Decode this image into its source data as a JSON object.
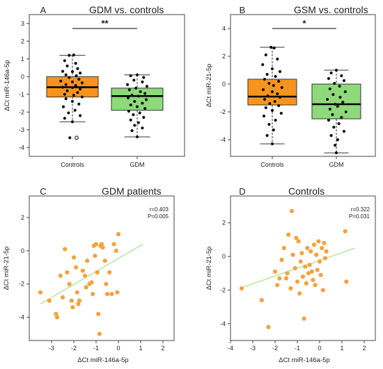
{
  "figure": {
    "background": "#ffffff",
    "colors": {
      "controls_box": "#f7941d",
      "gdm_box": "#8ed97a",
      "points": "#111111",
      "scatter_points": "#f5a23a",
      "regression_line": "#b5e39a",
      "frame": "#444444"
    }
  },
  "chart_data": [
    {
      "id": "A",
      "type": "box",
      "panel_letter": "A",
      "title": "GDM vs. controls",
      "xlabel": "",
      "ylabel": "ΔCt miR-146a-5p",
      "ylim": [
        -4.5,
        3.5
      ],
      "yticks": [
        -4,
        -3,
        -2,
        -1,
        0,
        1,
        2,
        3
      ],
      "categories": [
        "Controls",
        "GDM"
      ],
      "significance": "**",
      "boxes": [
        {
          "category": "Controls",
          "min": -2.55,
          "q1": -1.15,
          "median": -0.6,
          "q3": 0.0,
          "max": 1.2,
          "outliers": [
            -3.45
          ]
        },
        {
          "category": "GDM",
          "min": -3.4,
          "q1": -1.9,
          "median": -1.1,
          "q3": -0.65,
          "max": 0.1,
          "outliers": []
        }
      ],
      "points": [
        [
          0.95,
          1.2
        ],
        [
          1.02,
          1.22
        ],
        [
          0.88,
          0.9
        ],
        [
          1.05,
          0.75
        ],
        [
          0.92,
          0.6
        ],
        [
          1.08,
          0.45
        ],
        [
          0.85,
          0.3
        ],
        [
          1.0,
          0.28
        ],
        [
          1.12,
          0.2
        ],
        [
          0.9,
          0.1
        ],
        [
          1.06,
          0.05
        ],
        [
          0.95,
          -0.05
        ],
        [
          1.1,
          -0.15
        ],
        [
          0.82,
          -0.25
        ],
        [
          1.0,
          -0.3
        ],
        [
          1.15,
          -0.35
        ],
        [
          0.9,
          -0.45
        ],
        [
          1.05,
          -0.5
        ],
        [
          0.85,
          -0.6
        ],
        [
          1.0,
          -0.62
        ],
        [
          1.12,
          -0.7
        ],
        [
          0.92,
          -0.8
        ],
        [
          1.08,
          -0.9
        ],
        [
          0.88,
          -1.0
        ],
        [
          1.02,
          -1.05
        ],
        [
          1.15,
          -1.15
        ],
        [
          0.9,
          -1.25
        ],
        [
          1.0,
          -1.4
        ],
        [
          1.1,
          -1.55
        ],
        [
          0.86,
          -1.7
        ],
        [
          1.04,
          -1.9
        ],
        [
          0.94,
          -2.05
        ],
        [
          1.12,
          -2.2
        ],
        [
          0.88,
          -2.35
        ],
        [
          1.0,
          -2.55
        ],
        [
          0.96,
          -3.45
        ],
        [
          2.0,
          0.1
        ],
        [
          1.9,
          0.05
        ],
        [
          2.1,
          -0.05
        ],
        [
          1.95,
          -0.2
        ],
        [
          2.08,
          -0.3
        ],
        [
          1.85,
          -0.45
        ],
        [
          2.15,
          -0.55
        ],
        [
          1.98,
          -0.65
        ],
        [
          1.88,
          -0.75
        ],
        [
          2.05,
          -0.85
        ],
        [
          2.12,
          -0.95
        ],
        [
          1.92,
          -1.05
        ],
        [
          2.02,
          -1.1
        ],
        [
          1.86,
          -1.2
        ],
        [
          2.14,
          -1.3
        ],
        [
          1.96,
          -1.4
        ],
        [
          2.08,
          -1.5
        ],
        [
          1.9,
          -1.6
        ],
        [
          2.0,
          -1.7
        ],
        [
          2.12,
          -1.8
        ],
        [
          1.87,
          -1.95
        ],
        [
          2.04,
          -2.05
        ],
        [
          1.94,
          -2.15
        ],
        [
          2.1,
          -2.3
        ],
        [
          1.9,
          -2.45
        ],
        [
          2.02,
          -2.6
        ],
        [
          1.96,
          -2.75
        ],
        [
          2.08,
          -2.9
        ],
        [
          1.92,
          -3.05
        ],
        [
          2.0,
          -3.4
        ]
      ]
    },
    {
      "id": "B",
      "type": "box",
      "panel_letter": "B",
      "title": "GSM vs. controls",
      "xlabel": "",
      "ylabel": "ΔCt miR-21-5p",
      "ylim": [
        -5.2,
        5.0
      ],
      "yticks": [
        -4,
        -2,
        0,
        2,
        4
      ],
      "categories": [
        "Controls",
        "GDM"
      ],
      "significance": "*",
      "boxes": [
        {
          "category": "Controls",
          "min": -4.3,
          "q1": -1.5,
          "median": -0.9,
          "q3": 0.35,
          "max": 2.65,
          "outliers": []
        },
        {
          "category": "GDM",
          "min": -4.95,
          "q1": -2.5,
          "median": -1.45,
          "q3": 0.0,
          "max": 1.0,
          "outliers": []
        }
      ],
      "points": [
        [
          0.98,
          2.65
        ],
        [
          1.03,
          2.6
        ],
        [
          0.9,
          2.1
        ],
        [
          1.08,
          1.8
        ],
        [
          0.85,
          1.4
        ],
        [
          1.0,
          1.1
        ],
        [
          1.12,
          0.9
        ],
        [
          0.92,
          0.7
        ],
        [
          1.05,
          0.55
        ],
        [
          0.88,
          0.35
        ],
        [
          1.1,
          0.2
        ],
        [
          0.95,
          0.05
        ],
        [
          1.02,
          -0.1
        ],
        [
          1.15,
          -0.25
        ],
        [
          0.86,
          -0.4
        ],
        [
          1.0,
          -0.55
        ],
        [
          1.08,
          -0.7
        ],
        [
          0.93,
          -0.85
        ],
        [
          1.12,
          -0.95
        ],
        [
          0.88,
          -1.1
        ],
        [
          1.04,
          -1.25
        ],
        [
          0.96,
          -1.4
        ],
        [
          1.1,
          -1.55
        ],
        [
          0.9,
          -1.7
        ],
        [
          1.0,
          -1.9
        ],
        [
          1.14,
          -2.1
        ],
        [
          0.87,
          -2.3
        ],
        [
          1.05,
          -2.6
        ],
        [
          0.95,
          -2.9
        ],
        [
          1.02,
          -3.3
        ],
        [
          0.92,
          -3.7
        ],
        [
          1.0,
          -4.3
        ],
        [
          2.0,
          1.0
        ],
        [
          1.92,
          0.8
        ],
        [
          2.08,
          0.6
        ],
        [
          1.88,
          0.4
        ],
        [
          2.12,
          0.25
        ],
        [
          1.97,
          0.05
        ],
        [
          2.05,
          -0.15
        ],
        [
          1.9,
          -0.35
        ],
        [
          2.14,
          -0.55
        ],
        [
          1.95,
          -0.75
        ],
        [
          2.06,
          -0.95
        ],
        [
          1.86,
          -1.1
        ],
        [
          2.1,
          -1.3
        ],
        [
          1.98,
          -1.45
        ],
        [
          2.02,
          -1.6
        ],
        [
          1.9,
          -1.8
        ],
        [
          2.15,
          -2.0
        ],
        [
          1.94,
          -2.2
        ],
        [
          2.08,
          -2.4
        ],
        [
          1.88,
          -2.6
        ],
        [
          2.04,
          -2.85
        ],
        [
          1.96,
          -3.1
        ],
        [
          2.12,
          -3.4
        ],
        [
          1.92,
          -3.7
        ],
        [
          2.02,
          -4.0
        ],
        [
          1.98,
          -4.4
        ],
        [
          2.0,
          -4.95
        ]
      ]
    },
    {
      "id": "C",
      "type": "scatter",
      "panel_letter": "C",
      "title": "GDM patients",
      "xlabel": "ΔCt miR-146a-5p",
      "ylabel": "ΔCt miR-21-5p",
      "xlim": [
        -4,
        2.5
      ],
      "ylim": [
        -5.4,
        3.3
      ],
      "xticks": [
        -3,
        -2,
        -1,
        0,
        1,
        2
      ],
      "yticks": [
        -4,
        -2,
        0,
        2
      ],
      "annotation": [
        "r=0.403",
        "P=0.005"
      ],
      "fit_line": {
        "x": [
          -3.5,
          1.1
        ],
        "y": [
          -3.2,
          0.4
        ]
      },
      "points": [
        [
          -3.5,
          -2.5
        ],
        [
          -3.1,
          -3.0
        ],
        [
          -2.8,
          -3.8
        ],
        [
          -2.75,
          -4.0
        ],
        [
          -2.6,
          -1.5
        ],
        [
          -2.5,
          -2.8
        ],
        [
          -2.4,
          0.1
        ],
        [
          -2.3,
          -1.3
        ],
        [
          -2.2,
          -2.0
        ],
        [
          -2.1,
          -3.0
        ],
        [
          -2.05,
          -3.4
        ],
        [
          -2.0,
          -0.4
        ],
        [
          -1.9,
          -1.0
        ],
        [
          -1.85,
          -2.5
        ],
        [
          -1.8,
          -3.2
        ],
        [
          -1.75,
          -3.0
        ],
        [
          -1.6,
          -1.2
        ],
        [
          -1.5,
          -1.5
        ],
        [
          -1.45,
          -2.2
        ],
        [
          -1.4,
          -0.6
        ],
        [
          -1.3,
          -2.0
        ],
        [
          -1.2,
          -1.9
        ],
        [
          -1.15,
          -2.6
        ],
        [
          -1.1,
          0.3
        ],
        [
          -1.05,
          -0.3
        ],
        [
          -1.0,
          0.4
        ],
        [
          -0.95,
          -1.3
        ],
        [
          -0.9,
          -3.8
        ],
        [
          -0.85,
          -5.0
        ],
        [
          -0.8,
          0.3
        ],
        [
          -0.75,
          0.4
        ],
        [
          -0.7,
          0.2
        ],
        [
          -0.6,
          -0.6
        ],
        [
          -0.55,
          -2.0
        ],
        [
          -0.5,
          -2.6
        ],
        [
          -0.4,
          -1.3
        ],
        [
          -0.3,
          -2.6
        ],
        [
          -0.2,
          0.4
        ],
        [
          -0.1,
          0.0
        ],
        [
          0.0,
          1.0
        ],
        [
          -0.05,
          -2.5
        ]
      ]
    },
    {
      "id": "D",
      "type": "scatter",
      "panel_letter": "D",
      "title": "Controls",
      "xlabel": "ΔCt miR-146a-5p",
      "ylabel": "ΔCt miR-21-5p",
      "xlim": [
        -4,
        2.5
      ],
      "ylim": [
        -5.0,
        3.6
      ],
      "xticks": [
        -4,
        -3,
        -2,
        -1,
        0,
        1,
        2
      ],
      "yticks": [
        -4,
        -2,
        0,
        2
      ],
      "annotation": [
        "r=0.322",
        "P=0.031"
      ],
      "fit_line": {
        "x": [
          -3.6,
          1.6
        ],
        "y": [
          -1.9,
          0.5
        ]
      },
      "points": [
        [
          -3.5,
          -1.9
        ],
        [
          -2.6,
          -2.6
        ],
        [
          -2.3,
          -4.2
        ],
        [
          -2.0,
          -0.9
        ],
        [
          -1.9,
          -1.7
        ],
        [
          -1.8,
          -1.3
        ],
        [
          -1.7,
          -0.2
        ],
        [
          -1.6,
          0.5
        ],
        [
          -1.5,
          -1.3
        ],
        [
          -1.45,
          -1.0
        ],
        [
          -1.4,
          1.3
        ],
        [
          -1.3,
          -1.9
        ],
        [
          -1.25,
          2.7
        ],
        [
          -1.2,
          0.1
        ],
        [
          -1.1,
          -0.7
        ],
        [
          -1.05,
          1.1
        ],
        [
          -1.0,
          -1.5
        ],
        [
          -0.95,
          0.9
        ],
        [
          -0.9,
          -2.2
        ],
        [
          -0.85,
          -0.3
        ],
        [
          -0.8,
          0.2
        ],
        [
          -0.75,
          -1.2
        ],
        [
          -0.7,
          -3.7
        ],
        [
          -0.65,
          -0.6
        ],
        [
          -0.6,
          -1.6
        ],
        [
          -0.55,
          0.5
        ],
        [
          -0.5,
          -1.0
        ],
        [
          -0.45,
          -0.5
        ],
        [
          -0.4,
          0.3
        ],
        [
          -0.35,
          -0.9
        ],
        [
          -0.3,
          -1.4
        ],
        [
          -0.25,
          0.7
        ],
        [
          -0.2,
          -1.7
        ],
        [
          -0.15,
          0.1
        ],
        [
          -0.1,
          -0.8
        ],
        [
          -0.05,
          0.9
        ],
        [
          0.0,
          -0.3
        ],
        [
          0.05,
          -1.1
        ],
        [
          0.1,
          0.5
        ],
        [
          0.15,
          -2.0
        ],
        [
          0.2,
          0.8
        ],
        [
          0.25,
          -0.1
        ],
        [
          0.3,
          0.3
        ],
        [
          1.15,
          1.5
        ],
        [
          1.2,
          -1.5
        ]
      ]
    }
  ]
}
